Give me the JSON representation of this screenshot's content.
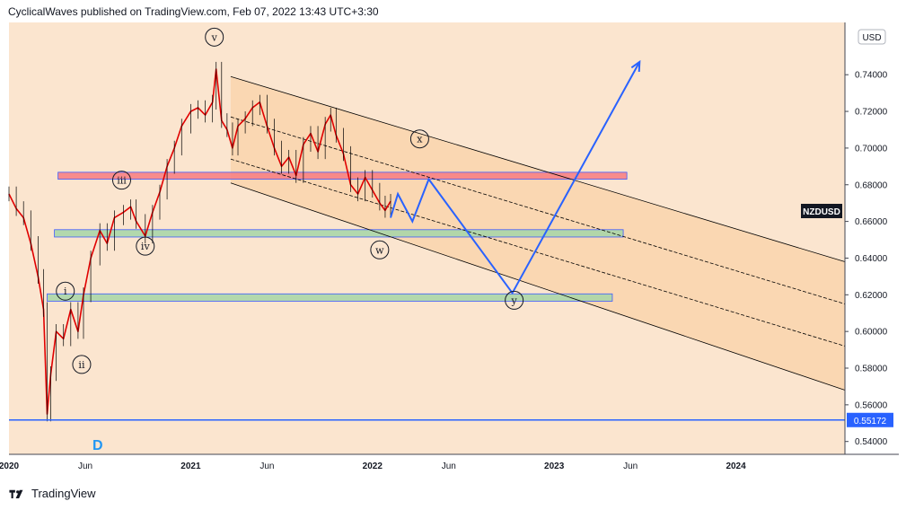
{
  "header": {
    "text": "CyclicalWaves published on TradingView.com, Feb 07, 2022 13:43 UTC+3:30"
  },
  "footer": {
    "brand": "TradingView",
    "logo_icon": "tradingview-logo-icon"
  },
  "chart_data": {
    "type": "line",
    "symbol": "NZDUSD",
    "currency": "USD",
    "last_price": "0.55172",
    "ylim": [
      0.533,
      0.7685
    ],
    "xlim": [
      2020.0,
      2024.6
    ],
    "y_ticks": [
      "0.74000",
      "0.72000",
      "0.70000",
      "0.68000",
      "0.66000",
      "0.64000",
      "0.62000",
      "0.60000",
      "0.58000",
      "0.56000",
      "0.54000"
    ],
    "x_ticks": [
      {
        "label": "2020",
        "x": 2020.0
      },
      {
        "label": "Jun",
        "x": 2020.42
      },
      {
        "label": "2021",
        "x": 2021.0
      },
      {
        "label": "Jun",
        "x": 2021.42
      },
      {
        "label": "2022",
        "x": 2022.0
      },
      {
        "label": "Jun",
        "x": 2022.42
      },
      {
        "label": "2023",
        "x": 2023.0
      },
      {
        "label": "Jun",
        "x": 2023.42
      },
      {
        "label": "2024",
        "x": 2024.0
      }
    ],
    "price_series": [
      [
        2020.0,
        0.675
      ],
      [
        2020.04,
        0.667
      ],
      [
        2020.08,
        0.662
      ],
      [
        2020.12,
        0.648
      ],
      [
        2020.16,
        0.63
      ],
      [
        2020.19,
        0.612
      ],
      [
        2020.21,
        0.555
      ],
      [
        2020.23,
        0.577
      ],
      [
        2020.26,
        0.6
      ],
      [
        2020.3,
        0.596
      ],
      [
        2020.34,
        0.612
      ],
      [
        2020.38,
        0.6
      ],
      [
        2020.41,
        0.62
      ],
      [
        2020.45,
        0.64
      ],
      [
        2020.5,
        0.655
      ],
      [
        2020.54,
        0.648
      ],
      [
        2020.58,
        0.662
      ],
      [
        2020.63,
        0.665
      ],
      [
        2020.67,
        0.668
      ],
      [
        2020.7,
        0.66
      ],
      [
        2020.75,
        0.652
      ],
      [
        2020.79,
        0.665
      ],
      [
        2020.83,
        0.676
      ],
      [
        2020.87,
        0.69
      ],
      [
        2020.91,
        0.7
      ],
      [
        2020.95,
        0.712
      ],
      [
        2021.0,
        0.72
      ],
      [
        2021.04,
        0.722
      ],
      [
        2021.08,
        0.718
      ],
      [
        2021.12,
        0.725
      ],
      [
        2021.14,
        0.743
      ],
      [
        2021.17,
        0.715
      ],
      [
        2021.2,
        0.71
      ],
      [
        2021.23,
        0.7
      ],
      [
        2021.26,
        0.712
      ],
      [
        2021.3,
        0.716
      ],
      [
        2021.34,
        0.722
      ],
      [
        2021.38,
        0.725
      ],
      [
        2021.42,
        0.712
      ],
      [
        2021.46,
        0.7
      ],
      [
        2021.5,
        0.69
      ],
      [
        2021.54,
        0.695
      ],
      [
        2021.58,
        0.685
      ],
      [
        2021.62,
        0.702
      ],
      [
        2021.66,
        0.708
      ],
      [
        2021.7,
        0.698
      ],
      [
        2021.74,
        0.713
      ],
      [
        2021.77,
        0.718
      ],
      [
        2021.8,
        0.707
      ],
      [
        2021.84,
        0.697
      ],
      [
        2021.88,
        0.68
      ],
      [
        2021.92,
        0.675
      ],
      [
        2021.96,
        0.684
      ],
      [
        2022.0,
        0.677
      ],
      [
        2022.04,
        0.67
      ],
      [
        2022.07,
        0.666
      ],
      [
        2022.1,
        0.671
      ]
    ],
    "projection": [
      [
        2022.1,
        0.662
      ],
      [
        2022.14,
        0.675
      ],
      [
        2022.22,
        0.66
      ],
      [
        2022.31,
        0.683
      ],
      [
        2022.77,
        0.621
      ],
      [
        2023.47,
        0.747
      ]
    ],
    "channels": [
      {
        "name": "upper",
        "y0": [
          2021.22,
          0.739
        ],
        "y1": [
          2024.6,
          0.638
        ]
      },
      {
        "name": "mid-upper",
        "y0": [
          2021.22,
          0.717
        ],
        "y1": [
          2024.6,
          0.615
        ],
        "dashed": true
      },
      {
        "name": "mid-lower",
        "y0": [
          2021.22,
          0.694
        ],
        "y1": [
          2024.6,
          0.592
        ],
        "dashed": true
      },
      {
        "name": "lower",
        "y0": [
          2021.22,
          0.681
        ],
        "y1": [
          2024.6,
          0.568
        ]
      }
    ],
    "zones": [
      {
        "color": "#f77c80",
        "y_top": 0.6868,
        "y_bottom": 0.683,
        "x0": 2020.27,
        "x1": 2023.4
      },
      {
        "color": "#a5d6a7",
        "y_top": 0.6555,
        "y_bottom": 0.6515,
        "x0": 2020.25,
        "x1": 2023.38
      },
      {
        "color": "#a5d6a7",
        "y_top": 0.6205,
        "y_bottom": 0.6165,
        "x0": 2020.21,
        "x1": 2023.32
      }
    ],
    "support_line": 0.55172,
    "wave_labels": [
      {
        "text": "v",
        "x": 2021.13,
        "y": 0.7605
      },
      {
        "text": "iii",
        "x": 2020.62,
        "y": 0.6825
      },
      {
        "text": "iv",
        "x": 2020.75,
        "y": 0.6465
      },
      {
        "text": "i",
        "x": 2020.31,
        "y": 0.622
      },
      {
        "text": "ii",
        "x": 2020.4,
        "y": 0.582
      },
      {
        "text": "x",
        "x": 2022.26,
        "y": 0.705
      },
      {
        "text": "w",
        "x": 2022.04,
        "y": 0.6445
      },
      {
        "text": "y",
        "x": 2022.78,
        "y": 0.617
      }
    ],
    "annotation": "D",
    "colors": {
      "candle": "#e00000",
      "wick": "#000000",
      "projection": "#2962ff",
      "support": "#2962ff",
      "channel_fill": "#f8c58f",
      "last_price_bg": "#2962ff"
    }
  }
}
